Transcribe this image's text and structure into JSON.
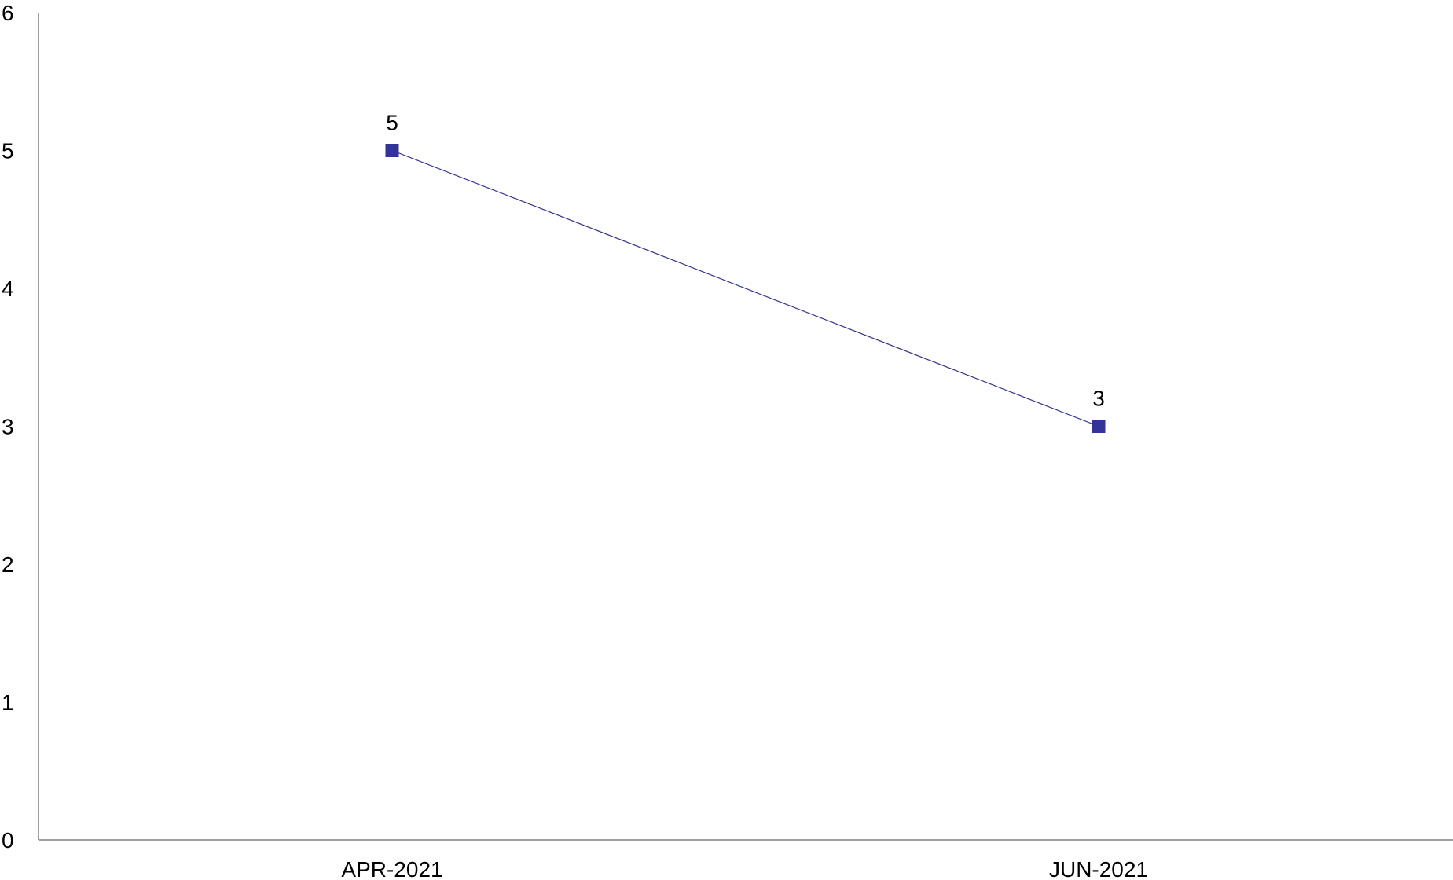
{
  "chart_data": {
    "type": "line",
    "categories": [
      "APR-2021",
      "JUN-2021"
    ],
    "series": [
      {
        "values": [
          5,
          3
        ],
        "color": "#333399"
      }
    ],
    "ylim": [
      0,
      6
    ],
    "yticks": [
      0,
      1,
      2,
      3,
      4,
      5,
      6
    ],
    "data_labels": [
      "5",
      "3"
    ],
    "marker": "square",
    "grid": false,
    "legend": "none",
    "axis_color": "#808080"
  }
}
